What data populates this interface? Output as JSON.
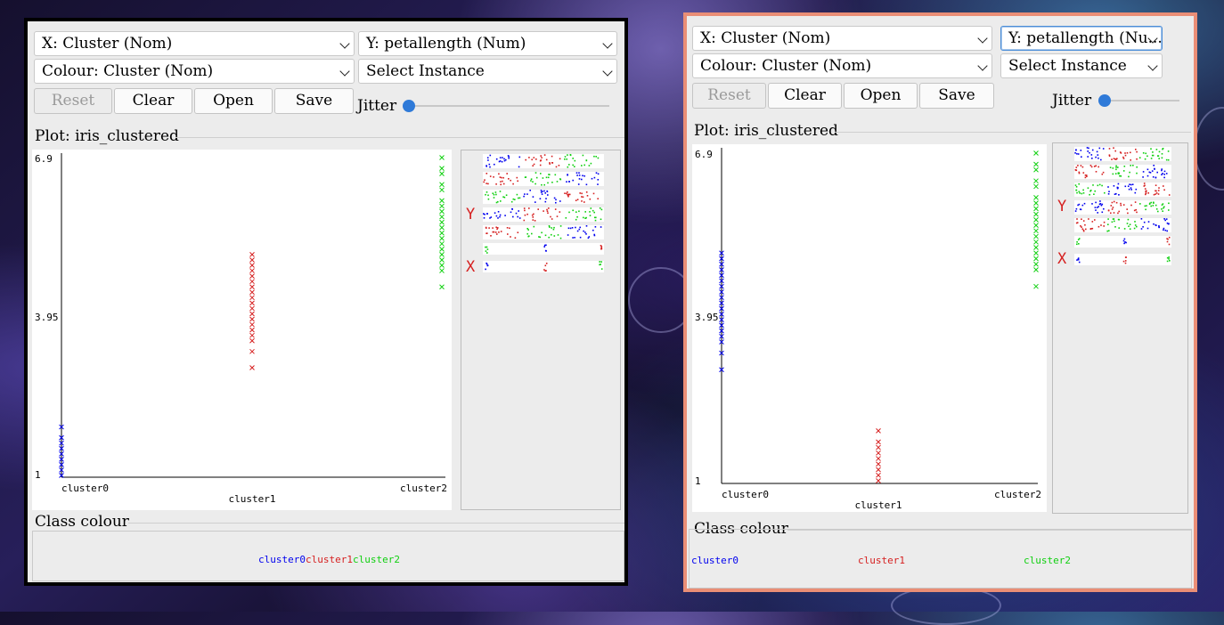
{
  "windows": [
    {
      "x_select": "X: Cluster (Nom)",
      "y_select": "Y: petallength (Num)",
      "colour_select": "Colour: Cluster (Nom)",
      "instance_select": "Select Instance",
      "buttons": {
        "reset": "Reset",
        "clear": "Clear",
        "open": "Open",
        "save": "Save"
      },
      "jitter_label": "Jitter",
      "jitter_value": 0,
      "plot_title": "Plot: iris_clustered",
      "class_colour_title": "Class colour",
      "matrix_y_label": "Y",
      "matrix_x_label": "X",
      "legend": [
        {
          "label": "cluster0",
          "color": "#0000ee"
        },
        {
          "label": "cluster1",
          "color": "#d62020"
        },
        {
          "label": "cluster2",
          "color": "#11d011"
        }
      ],
      "chart_data": {
        "type": "scatter",
        "title": "Plot: iris_clustered",
        "xlabel": "",
        "ylabel": "",
        "categories": [
          "cluster0",
          "cluster1",
          "cluster2"
        ],
        "y_ticks": [
          "6.9",
          "3.95",
          "1"
        ],
        "ylim": [
          1,
          6.9
        ],
        "series": [
          {
            "name": "cluster0",
            "category": 0,
            "marker": "x",
            "values": [
              1.0,
              1.1,
              1.2,
              1.3,
              1.4,
              1.5,
              1.6,
              1.7,
              1.9
            ]
          },
          {
            "name": "cluster1",
            "category": 1,
            "marker": "x",
            "values": [
              3.0,
              3.3,
              3.5,
              3.6,
              3.7,
              3.8,
              3.9,
              4.0,
              4.1,
              4.2,
              4.3,
              4.4,
              4.5,
              4.6,
              4.7,
              4.8,
              4.9,
              5.0,
              5.1
            ]
          },
          {
            "name": "cluster2",
            "category": 2,
            "marker": "x",
            "values": [
              4.5,
              4.8,
              4.9,
              5.0,
              5.1,
              5.2,
              5.3,
              5.4,
              5.5,
              5.6,
              5.7,
              5.8,
              5.9,
              6.0,
              6.1,
              6.3,
              6.4,
              6.6,
              6.7,
              6.9
            ]
          }
        ]
      }
    },
    {
      "x_select": "X: Cluster (Nom)",
      "y_select": "Y: petallength (Nu...",
      "colour_select": "Colour: Cluster (Nom)",
      "instance_select": "Select Instance",
      "buttons": {
        "reset": "Reset",
        "clear": "Clear",
        "open": "Open",
        "save": "Save"
      },
      "jitter_label": "Jitter",
      "jitter_value": 0,
      "plot_title": "Plot: iris_clustered",
      "class_colour_title": "Class colour",
      "matrix_y_label": "Y",
      "matrix_x_label": "X",
      "legend": [
        {
          "label": "cluster0",
          "color": "#0000ee"
        },
        {
          "label": "cluster1",
          "color": "#d62020"
        },
        {
          "label": "cluster2",
          "color": "#11d011"
        }
      ],
      "chart_data": {
        "type": "scatter",
        "title": "Plot: iris_clustered",
        "xlabel": "",
        "ylabel": "",
        "categories": [
          "cluster0",
          "cluster1",
          "cluster2"
        ],
        "y_ticks": [
          "6.9",
          "3.95",
          "1"
        ],
        "ylim": [
          1,
          6.9
        ],
        "series": [
          {
            "name": "cluster0",
            "category": 0,
            "marker": "x",
            "values": [
              3.0,
              3.3,
              3.5,
              3.6,
              3.7,
              3.8,
              3.9,
              4.0,
              4.1,
              4.2,
              4.3,
              4.4,
              4.5,
              4.6,
              4.7,
              4.8,
              4.9,
              5.0,
              5.1
            ]
          },
          {
            "name": "cluster1",
            "category": 1,
            "marker": "x",
            "values": [
              1.0,
              1.1,
              1.2,
              1.3,
              1.4,
              1.5,
              1.6,
              1.7,
              1.9
            ]
          },
          {
            "name": "cluster2",
            "category": 2,
            "marker": "x",
            "values": [
              4.5,
              4.8,
              4.9,
              5.0,
              5.1,
              5.2,
              5.3,
              5.4,
              5.5,
              5.6,
              5.7,
              5.8,
              5.9,
              6.0,
              6.1,
              6.3,
              6.4,
              6.6,
              6.7,
              6.9
            ]
          }
        ]
      }
    }
  ]
}
